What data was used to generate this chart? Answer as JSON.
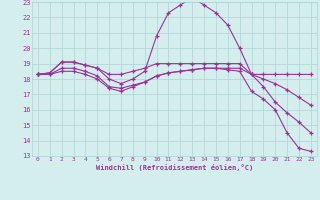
{
  "x_values": [
    0,
    1,
    2,
    3,
    4,
    5,
    6,
    7,
    8,
    9,
    10,
    11,
    12,
    13,
    14,
    15,
    16,
    17,
    18,
    19,
    20,
    21,
    22,
    23
  ],
  "line1": [
    18.3,
    18.4,
    19.1,
    19.1,
    18.9,
    18.7,
    18.3,
    18.3,
    18.5,
    18.7,
    19.0,
    19.0,
    19.0,
    19.0,
    19.0,
    19.0,
    19.0,
    19.0,
    18.3,
    18.3,
    18.3,
    18.3,
    18.3,
    18.3
  ],
  "line2": [
    18.3,
    18.4,
    19.1,
    19.1,
    18.9,
    18.7,
    18.0,
    17.7,
    18.0,
    18.5,
    20.8,
    22.3,
    22.8,
    23.3,
    22.8,
    22.3,
    21.5,
    20.0,
    18.3,
    17.5,
    16.5,
    15.8,
    15.2,
    14.5
  ],
  "line3": [
    18.3,
    18.3,
    18.7,
    18.7,
    18.5,
    18.2,
    17.5,
    17.4,
    17.6,
    17.8,
    18.2,
    18.4,
    18.5,
    18.6,
    18.7,
    18.7,
    18.7,
    18.7,
    18.3,
    18.0,
    17.7,
    17.3,
    16.8,
    16.3
  ],
  "line4": [
    18.3,
    18.3,
    18.5,
    18.5,
    18.3,
    18.0,
    17.4,
    17.2,
    17.5,
    17.8,
    18.2,
    18.4,
    18.5,
    18.6,
    18.7,
    18.7,
    18.6,
    18.5,
    17.2,
    16.7,
    16.0,
    14.5,
    13.5,
    13.3
  ],
  "line_color": "#993399",
  "bg_color": "#d4eeed",
  "grid_color": "#b0d4d4",
  "xlabel": "Windchill (Refroidissement éolien,°C)",
  "xmin": 0,
  "xmax": 23,
  "ymin": 13,
  "ymax": 23,
  "yticks": [
    13,
    14,
    15,
    16,
    17,
    18,
    19,
    20,
    21,
    22,
    23
  ],
  "xticks": [
    0,
    1,
    2,
    3,
    4,
    5,
    6,
    7,
    8,
    9,
    10,
    11,
    12,
    13,
    14,
    15,
    16,
    17,
    18,
    19,
    20,
    21,
    22,
    23
  ]
}
